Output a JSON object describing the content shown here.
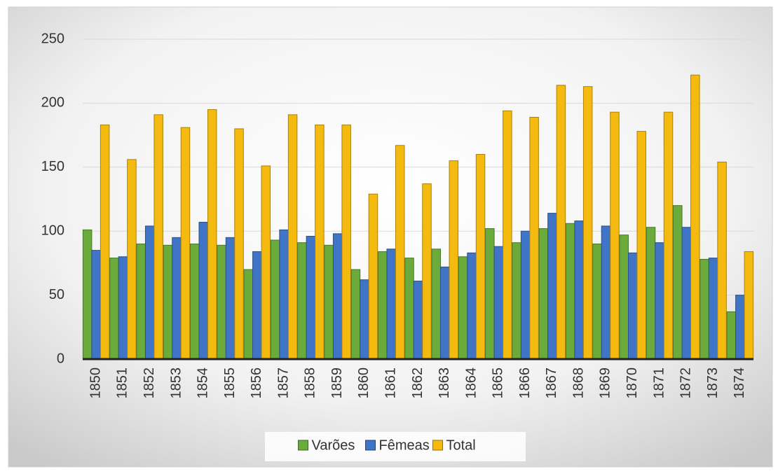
{
  "chart_data": {
    "type": "bar",
    "categories": [
      "1850",
      "1851",
      "1852",
      "1853",
      "1854",
      "1855",
      "1856",
      "1857",
      "1858",
      "1859",
      "1860",
      "1861",
      "1862",
      "1863",
      "1864",
      "1865",
      "1866",
      "1867",
      "1868",
      "1869",
      "1870",
      "1871",
      "1872",
      "1873",
      "1874"
    ],
    "series": [
      {
        "name": "Varões",
        "color": "#6aab3c",
        "values": [
          101,
          79,
          90,
          89,
          90,
          89,
          70,
          93,
          91,
          89,
          70,
          84,
          79,
          86,
          80,
          102,
          91,
          102,
          106,
          90,
          97,
          103,
          120,
          78,
          37
        ]
      },
      {
        "name": "Fêmeas",
        "color": "#3f74c6",
        "values": [
          85,
          80,
          104,
          95,
          107,
          95,
          84,
          101,
          96,
          98,
          62,
          86,
          61,
          72,
          83,
          88,
          100,
          114,
          108,
          104,
          83,
          91,
          103,
          79,
          50
        ]
      },
      {
        "name": "Total",
        "color": "#f5ba0f",
        "values": [
          183,
          156,
          191,
          181,
          195,
          180,
          151,
          191,
          183,
          183,
          129,
          167,
          137,
          155,
          160,
          194,
          189,
          214,
          213,
          193,
          178,
          193,
          222,
          154,
          84
        ]
      }
    ],
    "ylim": [
      0,
      250
    ],
    "yticks": [
      0,
      50,
      100,
      150,
      200,
      250
    ],
    "grid": true,
    "legend": "bottom"
  }
}
